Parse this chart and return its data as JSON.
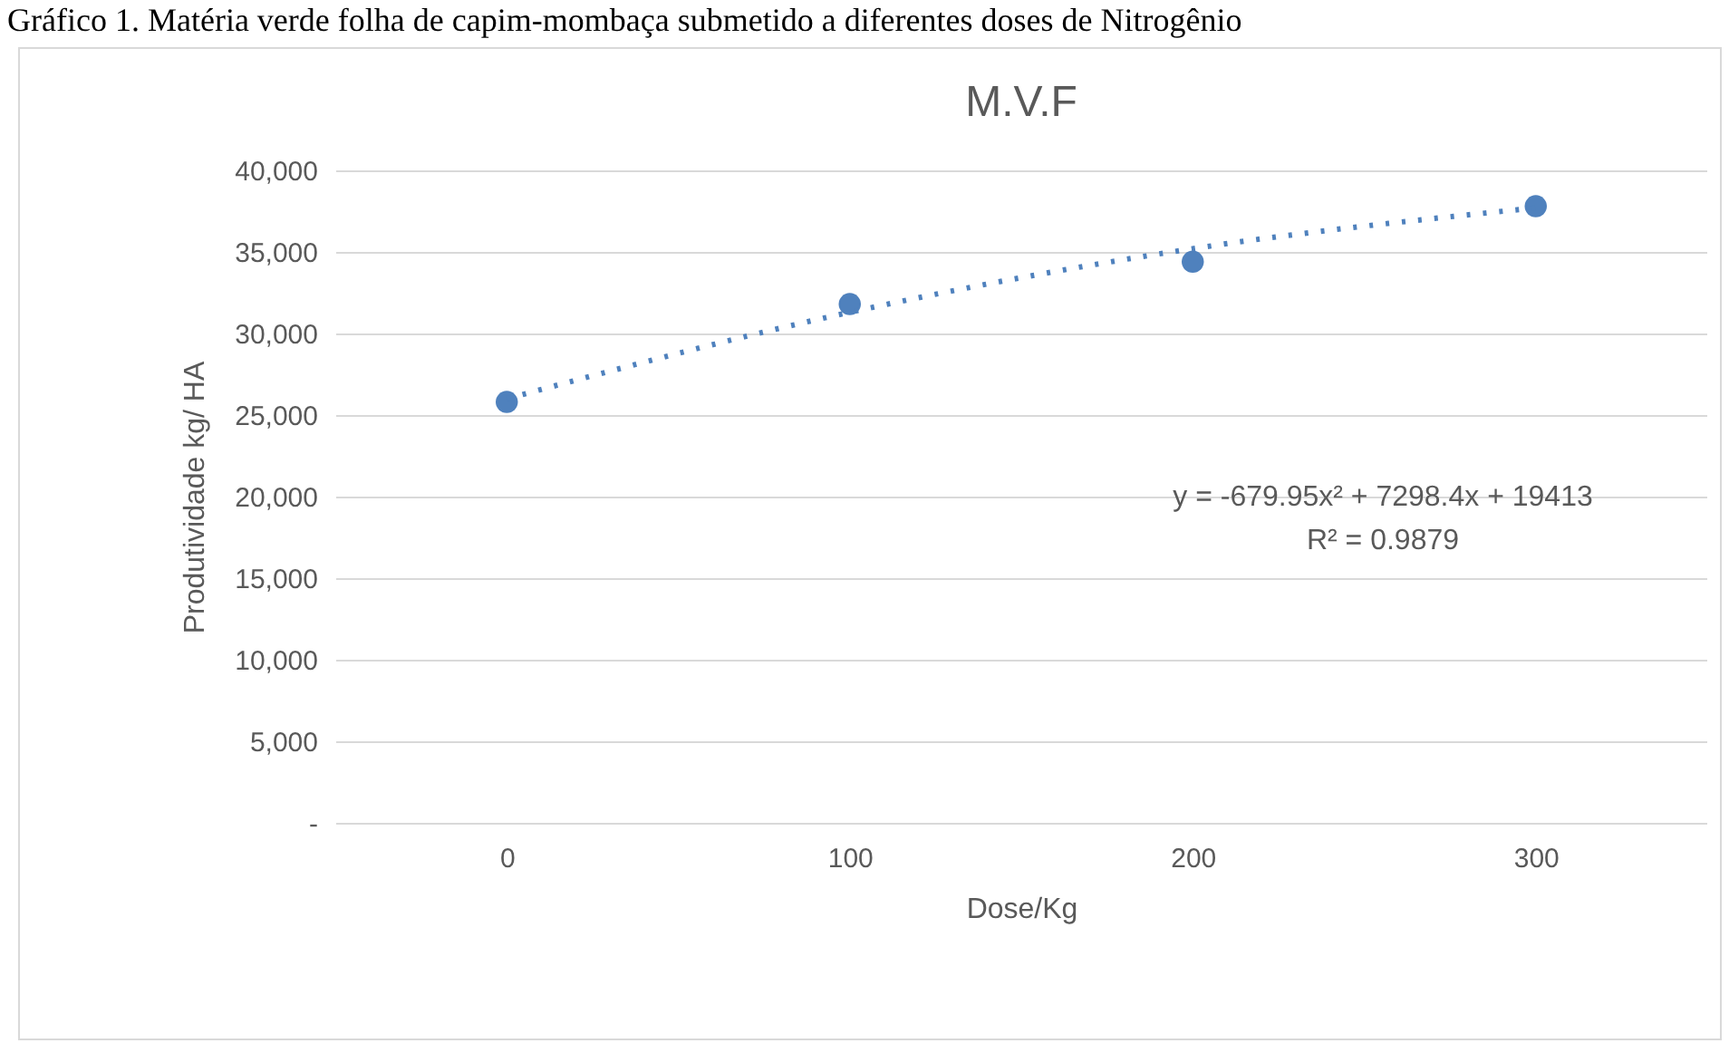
{
  "chart_data": {
    "type": "scatter",
    "title": "M.V.F",
    "annotations": [
      "Gráfico 1. Matéria verde folha de capim-mombaça submetido a diferentes doses de Nitrogênio",
      "y = -679.95x² + 7298.4x + 19413",
      "R² = 0.9879"
    ],
    "xlabel": "Dose/Kg",
    "ylabel": "Produtividade kg/ HA",
    "categories": [
      "0",
      "100",
      "200",
      "300"
    ],
    "series": [
      {
        "color": "#4f81bd",
        "marker": "circle",
        "values": [
          25800,
          31800,
          34400,
          37800
        ]
      },
      {
        "type": "line",
        "color": "#4f81bd",
        "line_style": "dotted",
        "marker": "none",
        "values": [
          26000,
          31300,
          35200,
          37700
        ]
      }
    ],
    "ylim": [
      0,
      40000
    ],
    "yticks": [
      {
        "value": 0,
        "label": "-"
      },
      {
        "value": 5000,
        "label": "5,000"
      },
      {
        "value": 10000,
        "label": "10,000"
      },
      {
        "value": 15000,
        "label": "15,000"
      },
      {
        "value": 20000,
        "label": "20,000"
      },
      {
        "value": 25000,
        "label": "25,000"
      },
      {
        "value": 30000,
        "label": "30,000"
      },
      {
        "value": 35000,
        "label": "35,000"
      },
      {
        "value": 40000,
        "label": "40,000"
      }
    ],
    "grid": "y"
  }
}
